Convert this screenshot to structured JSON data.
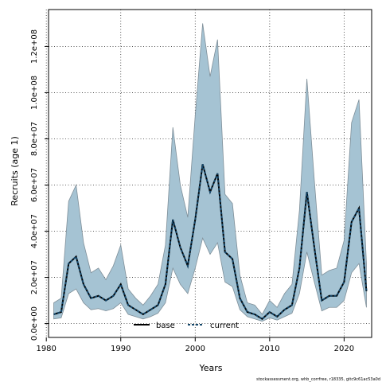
{
  "chart_data": {
    "type": "line",
    "xlabel": "Years",
    "ylabel": "Recruits (age 1)",
    "xlim": [
      1980.3,
      2023.7
    ],
    "ylim": [
      -6000000.0,
      136000000.0
    ],
    "x_ticks": [
      1980,
      1990,
      2000,
      2010,
      2020
    ],
    "x_tick_labels": [
      "1980",
      "1990",
      "2000",
      "2010",
      "2020"
    ],
    "y_ticks": [
      0,
      20000000,
      40000000,
      60000000,
      80000000,
      100000000,
      120000000
    ],
    "y_tick_labels": [
      "0.0e+00",
      "2.0e+07",
      "4.0e+07",
      "6.0e+07",
      "8.0e+07",
      "1.0e+08",
      "1.2e+08"
    ],
    "grid": true,
    "legend_position": "bottom-center",
    "band_color": "#a5c3d3",
    "band_edge_color": "#7f8f99",
    "current_color": "#15486b",
    "base_color": "#000000",
    "years": [
      1981,
      1982,
      1983,
      1984,
      1985,
      1986,
      1987,
      1988,
      1989,
      1990,
      1991,
      1992,
      1993,
      1994,
      1995,
      1996,
      1997,
      1998,
      1999,
      2000,
      2001,
      2002,
      2003,
      2004,
      2005,
      2006,
      2007,
      2008,
      2009,
      2010,
      2011,
      2012,
      2013,
      2014,
      2015,
      2016,
      2017,
      2018,
      2019,
      2020,
      2021,
      2022,
      2023
    ],
    "series": [
      {
        "name": "base",
        "values": [
          4000000,
          5000000,
          26000000,
          29000000,
          17000000,
          11000000,
          12000000,
          10000000,
          12000000,
          17000000,
          8000000,
          6000000,
          4000000,
          6000000,
          8000000,
          17000000,
          45000000,
          33000000,
          25000000,
          45000000,
          69000000,
          57000000,
          65000000,
          31000000,
          28000000,
          11000000,
          5000000,
          4000000,
          2000000,
          5000000,
          3000000,
          6000000,
          8000000,
          24000000,
          57000000,
          33000000,
          10000000,
          12000000,
          12000000,
          18000000,
          44000000,
          50000000,
          14000000
        ]
      },
      {
        "name": "current",
        "values": [
          4000000,
          5000000,
          26000000,
          29000000,
          17000000,
          11000000,
          12000000,
          10000000,
          12000000,
          17000000,
          8000000,
          6000000,
          4000000,
          6000000,
          8000000,
          17000000,
          45000000,
          33000000,
          25000000,
          45000000,
          69000000,
          57000000,
          65000000,
          31000000,
          28000000,
          11000000,
          5000000,
          4000000,
          2000000,
          5000000,
          3000000,
          6000000,
          8000000,
          24000000,
          57000000,
          33000000,
          10000000,
          12000000,
          12000000,
          18000000,
          44000000,
          50000000,
          14000000
        ]
      }
    ],
    "band_upper": [
      9000000,
      11000000,
      53000000,
      60000000,
      35000000,
      22000000,
      24000000,
      19000000,
      25000000,
      34000000,
      15000000,
      11000000,
      8000000,
      12000000,
      17000000,
      34000000,
      85000000,
      60000000,
      46000000,
      90000000,
      130000000,
      107000000,
      123000000,
      56000000,
      52000000,
      21000000,
      9000000,
      8000000,
      4000000,
      10000000,
      7000000,
      13000000,
      17000000,
      49000000,
      106000000,
      62000000,
      21000000,
      23000000,
      24000000,
      36000000,
      87000000,
      97000000,
      26000000
    ],
    "band_lower": [
      2000000,
      2500000,
      13000000,
      15000000,
      9000000,
      6000000,
      6500000,
      5500000,
      6500000,
      9000000,
      4000000,
      3000000,
      2000000,
      3000000,
      4500000,
      9000000,
      24000000,
      17000000,
      13000000,
      24000000,
      37000000,
      30000000,
      35000000,
      18000000,
      16000000,
      6000000,
      3000000,
      2000000,
      1000000,
      2500000,
      1500000,
      3000000,
      4500000,
      13000000,
      31000000,
      18000000,
      5500000,
      7000000,
      7000000,
      10000000,
      22000000,
      26000000,
      7000000
    ]
  },
  "footer_text": "stockassessment.org, whb_corrfree, r18335, gitc9c61ac53a0d"
}
